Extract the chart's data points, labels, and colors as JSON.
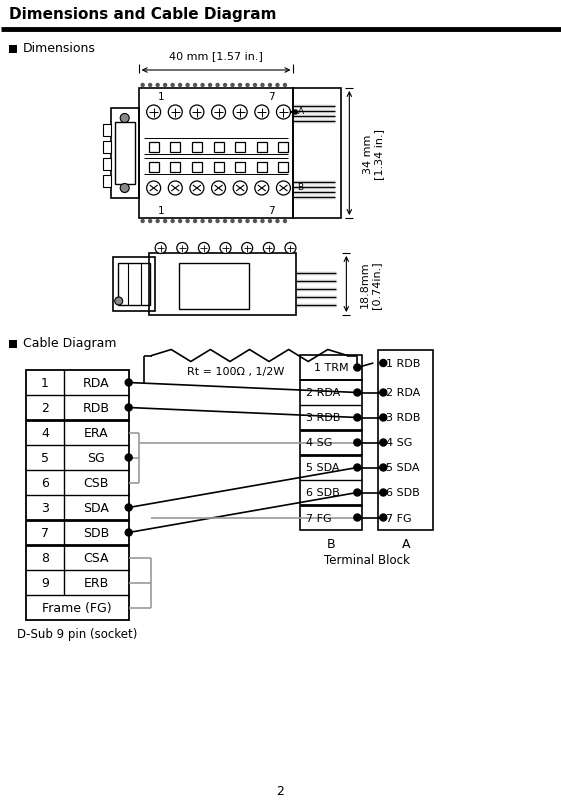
{
  "title": "Dimensions and Cable Diagram",
  "section1": "Dimensions",
  "section2": "Cable Diagram",
  "dim_width_label": "40 mm [1.57 in.]",
  "dim_height_label": "34 mm\n[1.34 in.]",
  "dim_height2_label": "18.8mm\n[0.74in.]",
  "dsub_label": "D-Sub 9 pin (socket)",
  "tb_label": "Terminal Block",
  "rt_label": "Rt = 100Ω , 1/2W",
  "dsub_pins": [
    [
      "1",
      "RDA"
    ],
    [
      "2",
      "RDB"
    ],
    [
      "4",
      "ERA"
    ],
    [
      "5",
      "SG"
    ],
    [
      "6",
      "CSB"
    ],
    [
      "3",
      "SDA"
    ],
    [
      "7",
      "SDB"
    ],
    [
      "8",
      "CSA"
    ],
    [
      "9",
      "ERB"
    ],
    [
      "Frame (FG)",
      ""
    ]
  ],
  "tb_B_pins": [
    "1 TRM",
    "2 RDA",
    "3 RDB",
    "4 SG",
    "5 SDA",
    "6 SDB",
    "7 FG"
  ],
  "tb_A_pins": [
    "1 RDB",
    "2 RDA",
    "3 RDB",
    "4 SG",
    "5 SDA",
    "6 SDB",
    "7 FG"
  ],
  "page_num": "2",
  "bg_color": "#ffffff",
  "line_color": "#000000",
  "gray_color": "#999999"
}
